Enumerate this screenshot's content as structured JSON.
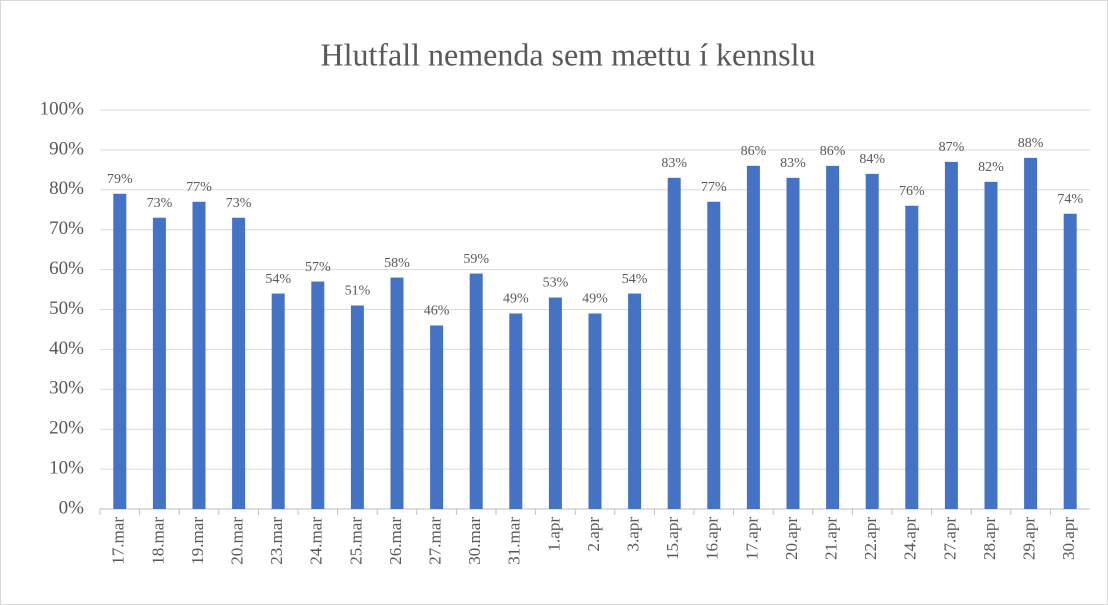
{
  "chart_data": {
    "type": "bar",
    "title": "Hlutfall nemenda sem mættu í kennslu",
    "categories": [
      "17.mar",
      "18.mar",
      "19.mar",
      "20.mar",
      "23.mar",
      "24.mar",
      "25.mar",
      "26.mar",
      "27.mar",
      "30.mar",
      "31.mar",
      "1.apr",
      "2.apr",
      "3.apr",
      "15.apr",
      "16.apr",
      "17.apr",
      "20.apr",
      "21.apr",
      "22.apr",
      "24.apr",
      "27.apr",
      "28.apr",
      "29.apr",
      "30.apr"
    ],
    "values": [
      79,
      73,
      77,
      73,
      54,
      57,
      51,
      58,
      46,
      59,
      49,
      53,
      49,
      54,
      83,
      77,
      86,
      83,
      86,
      84,
      76,
      87,
      82,
      88,
      74
    ],
    "value_labels": [
      "79%",
      "73%",
      "77%",
      "73%",
      "54%",
      "57%",
      "51%",
      "58%",
      "46%",
      "59%",
      "49%",
      "53%",
      "49%",
      "54%",
      "83%",
      "77%",
      "86%",
      "83%",
      "86%",
      "84%",
      "76%",
      "87%",
      "82%",
      "88%",
      "74%"
    ],
    "color": "#4472c4",
    "ylim": [
      0,
      100
    ],
    "yticks": [
      {
        "value": 0,
        "label": "0%"
      },
      {
        "value": 10,
        "label": "10%"
      },
      {
        "value": 20,
        "label": "20%"
      },
      {
        "value": 30,
        "label": "30%"
      },
      {
        "value": 40,
        "label": "40%"
      },
      {
        "value": 50,
        "label": "50%"
      },
      {
        "value": 60,
        "label": "60%"
      },
      {
        "value": 70,
        "label": "70%"
      },
      {
        "value": 80,
        "label": "80%"
      },
      {
        "value": 90,
        "label": "90%"
      },
      {
        "value": 100,
        "label": "100%"
      }
    ],
    "grid": true
  }
}
